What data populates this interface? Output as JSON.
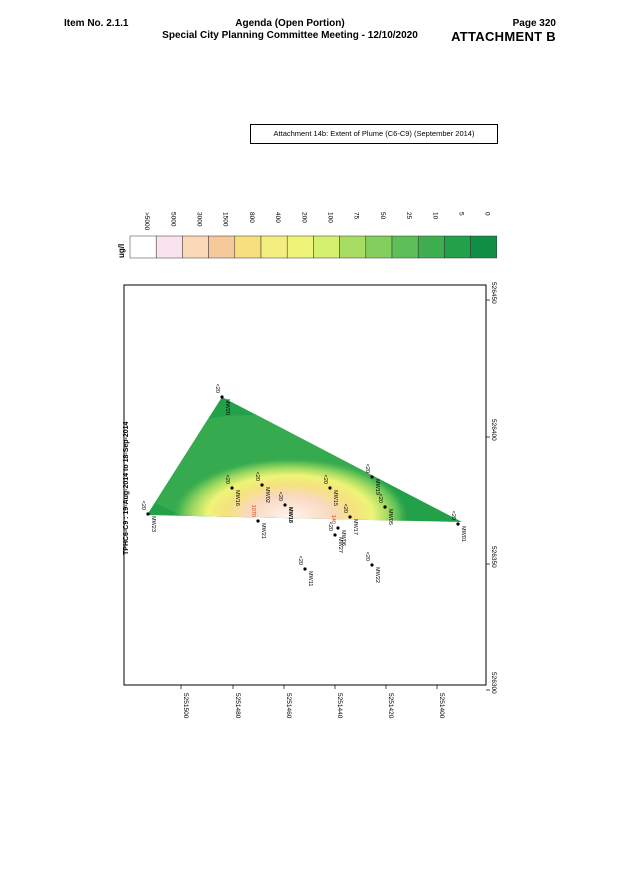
{
  "header": {
    "item_no": "Item No. 2.1.1",
    "agenda_line1": "Agenda (Open Portion)",
    "agenda_line2": "Special City Planning Committee Meeting - 12/10/2020",
    "page": "Page 320",
    "attachment": "ATTACHMENT B"
  },
  "caption": "Attachment 14b: Extent of Plume (C6-C9) (September 2014)",
  "map": {
    "title": "TPHC6-C9 : 19-Aug-2014 to 18-Sep-2014",
    "legend_unit": "ug/l",
    "legend": [
      {
        "label": ">5000",
        "color": "#ffffff"
      },
      {
        "label": "5000",
        "color": "#f9e3ec"
      },
      {
        "label": "3000",
        "color": "#f9d9b8"
      },
      {
        "label": "1500",
        "color": "#f6c99a"
      },
      {
        "label": "800",
        "color": "#f5e07d"
      },
      {
        "label": "400",
        "color": "#f4ee80"
      },
      {
        "label": "200",
        "color": "#eef478"
      },
      {
        "label": "100",
        "color": "#d5ef6e"
      },
      {
        "label": "75",
        "color": "#a8dc62"
      },
      {
        "label": "50",
        "color": "#83cf5e"
      },
      {
        "label": "25",
        "color": "#5dbf57"
      },
      {
        "label": "10",
        "color": "#3eae50"
      },
      {
        "label": "5",
        "color": "#23a04a"
      },
      {
        "label": "0",
        "color": "#118f44"
      }
    ],
    "x_ticks": [
      "526300",
      "526350",
      "526400",
      "526450"
    ],
    "y_ticks": [
      "5251400",
      "5251420",
      "5251440",
      "5251460",
      "5251480",
      "5251500"
    ],
    "wells": [
      {
        "name": "MW20",
        "value": "<20"
      },
      {
        "name": "MW23",
        "value": "<20"
      },
      {
        "name": "MW16",
        "value": "<20"
      },
      {
        "name": "MW02",
        "value": "<20"
      },
      {
        "name": "MW18",
        "value": "<20"
      },
      {
        "name": "MW15",
        "value": "<20"
      },
      {
        "name": "MW19",
        "value": "<20"
      },
      {
        "name": "MW21",
        "value": "1070"
      },
      {
        "name": "MW17",
        "value": "<20"
      },
      {
        "name": "MW05",
        "value": "<20"
      },
      {
        "name": "MW27",
        "value": "<20"
      },
      {
        "name": "MW22",
        "value": "<20"
      },
      {
        "name": "MW11",
        "value": "<20"
      },
      {
        "name": "MW01",
        "value": "<20"
      },
      {
        "name": "MW06",
        "value": "140"
      }
    ],
    "colors": {
      "frame": "#000000",
      "plume_core": "#fff1ea",
      "background_green": "#23a04a"
    }
  }
}
